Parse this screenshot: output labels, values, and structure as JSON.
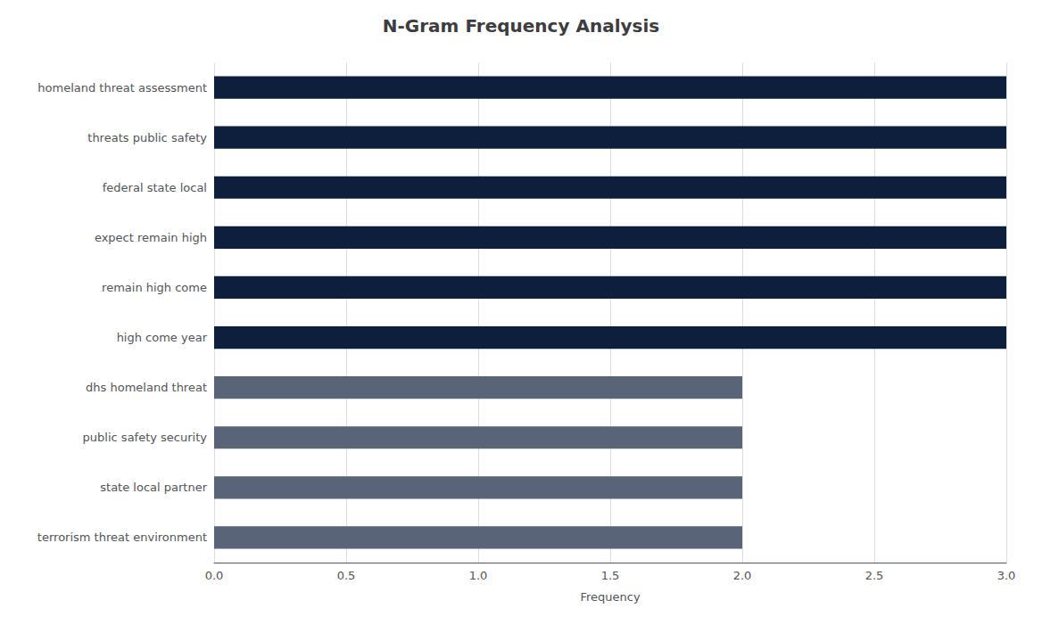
{
  "chart_data": {
    "type": "bar",
    "orientation": "horizontal",
    "title": "N-Gram Frequency Analysis",
    "xlabel": "Frequency",
    "categories": [
      "terrorism threat environment",
      "state local partner",
      "public safety security",
      "dhs homeland threat",
      "high come year",
      "remain high come",
      "expect remain high",
      "federal state local",
      "threats public safety",
      "homeland threat assessment"
    ],
    "values": [
      2,
      2,
      2,
      2,
      3,
      3,
      3,
      3,
      3,
      3
    ],
    "colors": [
      "#5a6478",
      "#5a6478",
      "#5a6478",
      "#5a6478",
      "#0d1f3c",
      "#0d1f3c",
      "#0d1f3c",
      "#0d1f3c",
      "#0d1f3c",
      "#0d1f3c"
    ],
    "xlim": [
      0,
      3.0
    ],
    "xticks": [
      {
        "value": 0,
        "label": "0.0"
      },
      0.5,
      {
        "value": 1,
        "label": "1.0"
      },
      1.5,
      {
        "value": 2,
        "label": "2.0"
      },
      2.5,
      {
        "value": 3,
        "label": "3.0"
      }
    ],
    "grid": true
  }
}
